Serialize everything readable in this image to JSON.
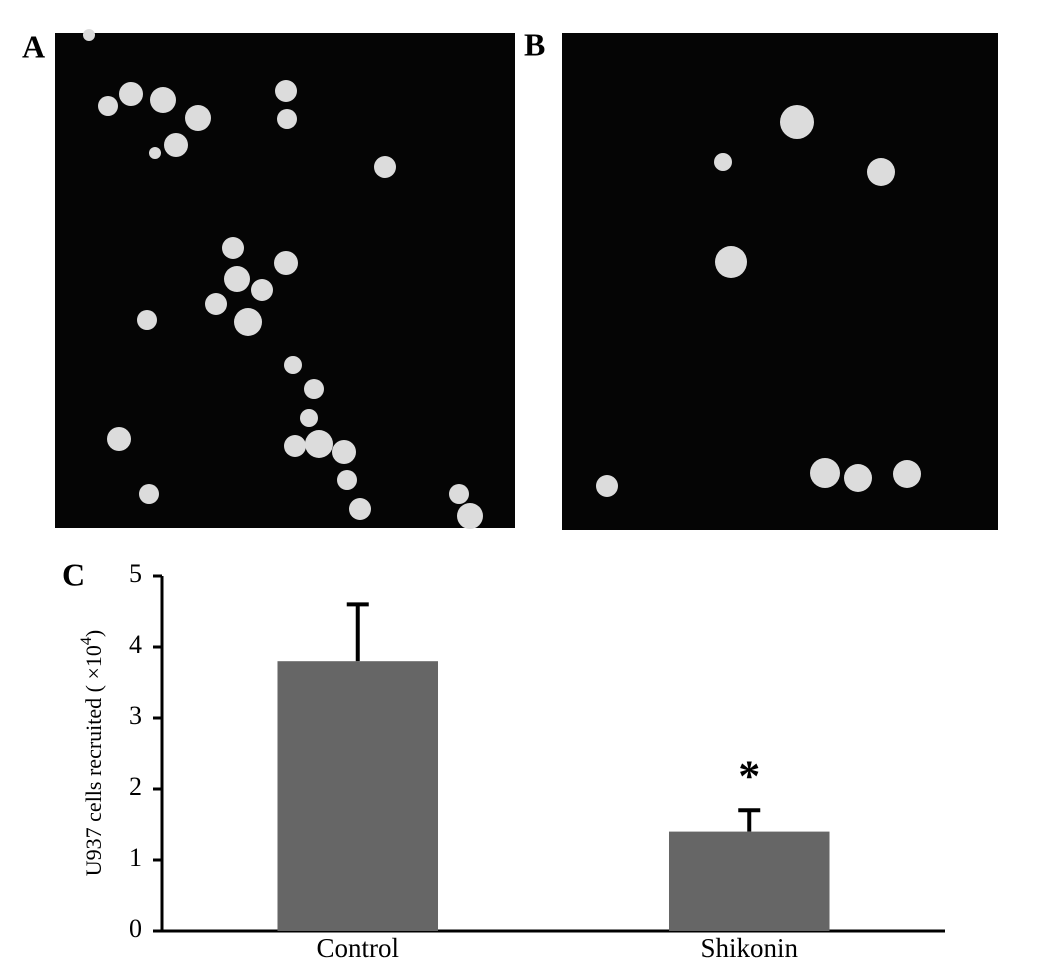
{
  "panels": [
    "A",
    "B"
  ],
  "chart_data": {
    "type": "bar",
    "panel_label": "C",
    "ylabel": "U937 cells recruited ( ×10",
    "ylabel_exponent": "4",
    "ylabel_suffix": ")",
    "categories": [
      "Control",
      "Shikonin"
    ],
    "values": [
      3.8,
      1.4
    ],
    "errors": [
      0.8,
      0.3
    ],
    "color": "#666666",
    "annotation": "*",
    "ylim": [
      0,
      5
    ],
    "yticks": [
      0,
      1,
      2,
      3,
      4,
      5
    ],
    "grid": false
  }
}
